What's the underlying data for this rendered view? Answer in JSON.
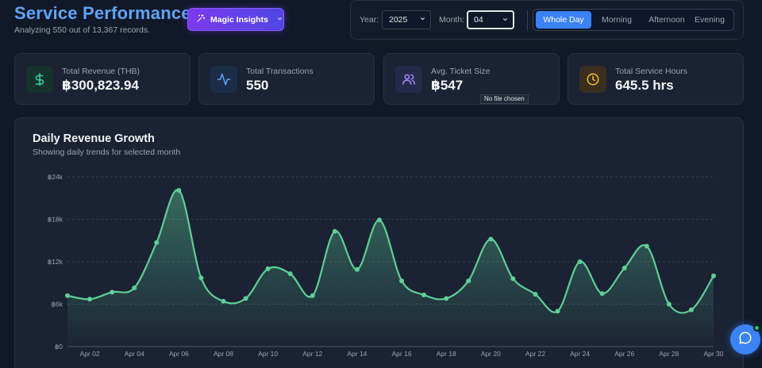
{
  "header": {
    "title": "Service Performance",
    "subtitle": "Analyzing 550 out of 13,367 records.",
    "magic_button": "Magic Insights"
  },
  "filters": {
    "year_label": "Year:",
    "year_value": "2025",
    "month_label": "Month:",
    "month_value": "04",
    "time_segments": [
      "Whole Day",
      "Morning",
      "Afternoon",
      "Evening"
    ],
    "active_segment": "Whole Day"
  },
  "kpis": [
    {
      "label": "Total Revenue (THB)",
      "value": "฿300,823.94",
      "icon": "currency-dollar-icon",
      "accent": "#34d399"
    },
    {
      "label": "Total Transactions",
      "value": "550",
      "icon": "activity-pulse-icon",
      "accent": "#60a5fa"
    },
    {
      "label": "Avg. Ticket Size",
      "value": "฿547",
      "icon": "users-icon",
      "accent": "#a78bfa"
    },
    {
      "label": "Total Service Hours",
      "value": "645.5 hrs",
      "icon": "clock-icon",
      "accent": "#fbbf24"
    }
  ],
  "file_tooltip": "No file chosen",
  "chart": {
    "title": "Daily Revenue Growth",
    "subtitle": "Showing daily trends for selected month"
  },
  "chart_data": {
    "type": "area",
    "title": "Daily Revenue Growth",
    "x": [
      "Apr 01",
      "Apr 02",
      "Apr 03",
      "Apr 04",
      "Apr 05",
      "Apr 06",
      "Apr 07",
      "Apr 08",
      "Apr 09",
      "Apr 10",
      "Apr 11",
      "Apr 12",
      "Apr 13",
      "Apr 14",
      "Apr 15",
      "Apr 16",
      "Apr 17",
      "Apr 18",
      "Apr 19",
      "Apr 20",
      "Apr 21",
      "Apr 22",
      "Apr 23",
      "Apr 24",
      "Apr 25",
      "Apr 26",
      "Apr 27",
      "Apr 28",
      "Apr 29",
      "Apr 30"
    ],
    "x_tick_labels": [
      "Apr 02",
      "Apr 04",
      "Apr 06",
      "Apr 08",
      "Apr 10",
      "Apr 12",
      "Apr 14",
      "Apr 16",
      "Apr 18",
      "Apr 20",
      "Apr 22",
      "Apr 24",
      "Apr 26",
      "Apr 28",
      "Apr 30"
    ],
    "series": [
      {
        "name": "",
        "values": [
          7200,
          6700,
          7700,
          8300,
          14700,
          22100,
          9700,
          6400,
          6800,
          11000,
          10300,
          7200,
          16300,
          10900,
          17900,
          9300,
          7300,
          6800,
          9300,
          15200,
          9600,
          7400,
          5000,
          12000,
          7500,
          11100,
          14200,
          6000,
          5200,
          10000
        ]
      }
    ],
    "ylim": [
      0,
      24000
    ],
    "y_ticks": [
      0,
      6000,
      12000,
      18000,
      24000
    ],
    "y_tick_labels": [
      "฿0",
      "฿6k",
      "฿12k",
      "฿18k",
      "฿24k"
    ],
    "grid": true,
    "color": "#5fcf97"
  }
}
